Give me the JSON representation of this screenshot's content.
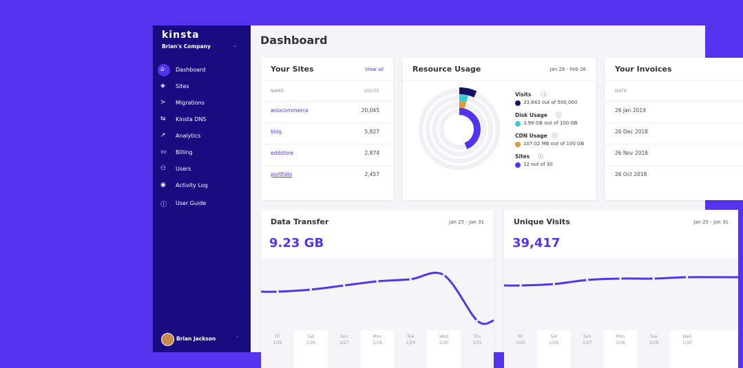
{
  "sidebar": {
    "brand": "kinsta",
    "company": "Brian's Company",
    "nav": [
      "Dashboard",
      "Sites",
      "Migrations",
      "Kinsta DNS",
      "Analytics",
      "Billing",
      "Users",
      "Activity Log",
      "User Guide"
    ],
    "user": "Brian Jackson"
  },
  "header": {
    "title": "Dashboard"
  },
  "sites": {
    "title": "Your Sites",
    "link": "View all",
    "columns": [
      "NAME",
      "VISITS"
    ],
    "rows": [
      [
        "woocommerce",
        "20,045"
      ],
      [
        "blog",
        "5,827"
      ],
      [
        "eddstore",
        "2,874"
      ],
      [
        "portfolio",
        "2,457"
      ]
    ]
  },
  "resources": {
    "title": "Resource Usage",
    "period": "Jan 26 - Feb 26",
    "items": [
      {
        "name": "Visits",
        "detail": "33,843 out of 500,000",
        "color": "#170f63"
      },
      {
        "name": "Disk Usage",
        "detail": "3.99 GB out of 100 GB",
        "color": "#3ccbd6"
      },
      {
        "name": "CDN Usage",
        "detail": "107.02 MB out of 100 GB",
        "color": "#df9a2f"
      },
      {
        "name": "Sites",
        "detail": "12 out of 30",
        "color": "#5333ed"
      }
    ]
  },
  "invoices": {
    "title": "Your Invoices",
    "column": "DATE",
    "rows": [
      "26 Jan 2019",
      "26 Dec 2018",
      "26 Nov 2018",
      "26 Oct 2018"
    ]
  },
  "transfer": {
    "title": "Data Transfer",
    "period": "Jan 25 - Jan 31",
    "total": "9.23 GB",
    "days": [
      {
        "day": "Fri",
        "date": "1/25"
      },
      {
        "day": "Sat",
        "date": "1/26"
      },
      {
        "day": "Sun",
        "date": "1/27"
      },
      {
        "day": "Mon",
        "date": "1/28"
      },
      {
        "day": "Tue",
        "date": "1/29"
      },
      {
        "day": "Wed",
        "date": "1/30"
      },
      {
        "day": "Thu",
        "date": "1/31"
      }
    ],
    "values": [
      56,
      59,
      65,
      71,
      74,
      80,
      14
    ]
  },
  "visits": {
    "title": "Unique Visits",
    "period": "Jan 25 - Jan 31",
    "total": "39,417",
    "days": [
      {
        "day": "Fri",
        "date": "1/25"
      },
      {
        "day": "Sat",
        "date": "1/26"
      },
      {
        "day": "Sun",
        "date": "1/27"
      },
      {
        "day": "Mon",
        "date": "1/28"
      },
      {
        "day": "Tue",
        "date": "1/29"
      },
      {
        "day": "Wed",
        "date": "1/30"
      }
    ],
    "values": [
      65,
      67,
      73,
      75,
      75,
      77
    ]
  }
}
